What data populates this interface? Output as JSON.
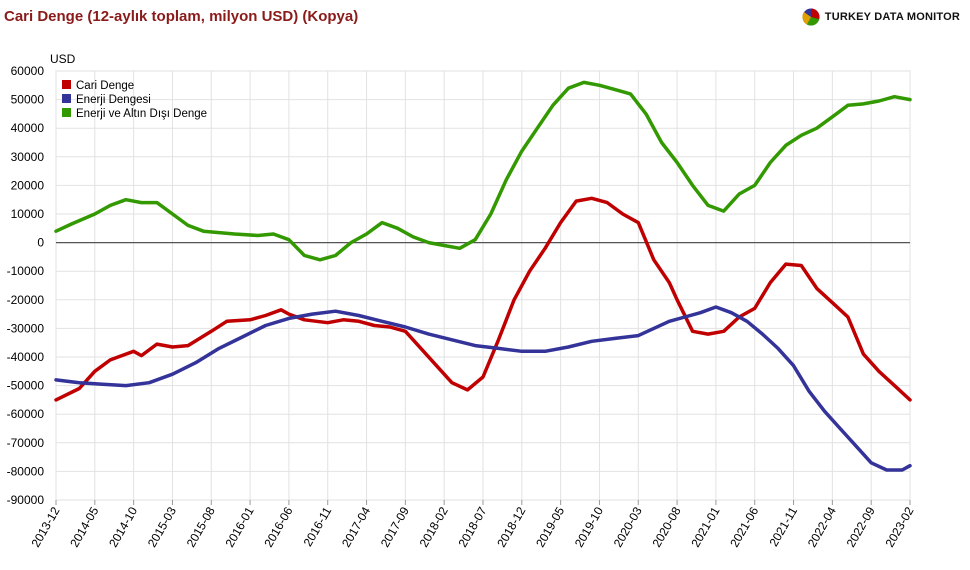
{
  "header": {
    "title": "Cari Denge (12-aylık toplam, milyon USD) (Kopya)",
    "brand": "TURKEY DATA MONITOR"
  },
  "colors": {
    "cari": "#c00000",
    "enerji": "#333399",
    "disi": "#339900",
    "zero_line": "#555555",
    "frame": "#cccccc"
  },
  "icons": {
    "brand": "pie-logo-icon"
  },
  "chart_data": {
    "type": "line",
    "ylabel": "USD",
    "ylim": [
      -90000,
      60000
    ],
    "yticks": [
      "60000",
      "50000",
      "40000",
      "30000",
      "20000",
      "10000",
      "0",
      "-10000",
      "-20000",
      "-30000",
      "-40000",
      "-50000",
      "-60000",
      "-70000",
      "-80000",
      "-90000"
    ],
    "x_start": "2013-12",
    "x_end": "2023-02",
    "xticks": [
      "2013-12",
      "2014-05",
      "2014-10",
      "2015-03",
      "2015-08",
      "2016-01",
      "2016-06",
      "2016-11",
      "2017-04",
      "2017-09",
      "2018-02",
      "2018-07",
      "2018-12",
      "2019-05",
      "2019-10",
      "2020-03",
      "2020-08",
      "2021-01",
      "2021-06",
      "2021-11",
      "2022-04",
      "2022-09",
      "2023-02"
    ],
    "legend_position": "top-left",
    "grid": true,
    "series": [
      {
        "name": "Cari Denge",
        "color": "#c00000",
        "points": [
          [
            "2013-12",
            -55000
          ],
          [
            "2014-03",
            -51000
          ],
          [
            "2014-05",
            -45000
          ],
          [
            "2014-07",
            -41000
          ],
          [
            "2014-10",
            -38000
          ],
          [
            "2014-11",
            -39500
          ],
          [
            "2015-01",
            -35500
          ],
          [
            "2015-03",
            -36500
          ],
          [
            "2015-05",
            -36000
          ],
          [
            "2015-08",
            -31000
          ],
          [
            "2015-10",
            -27500
          ],
          [
            "2016-01",
            -27000
          ],
          [
            "2016-03",
            -25500
          ],
          [
            "2016-05",
            -23500
          ],
          [
            "2016-06",
            -25000
          ],
          [
            "2016-08",
            -27000
          ],
          [
            "2016-11",
            -28000
          ],
          [
            "2017-01",
            -27000
          ],
          [
            "2017-03",
            -27500
          ],
          [
            "2017-05",
            -29000
          ],
          [
            "2017-07",
            -29500
          ],
          [
            "2017-09",
            -31000
          ],
          [
            "2017-11",
            -37000
          ],
          [
            "2018-01",
            -43000
          ],
          [
            "2018-03",
            -49000
          ],
          [
            "2018-05",
            -51500
          ],
          [
            "2018-07",
            -47000
          ],
          [
            "2018-09",
            -34000
          ],
          [
            "2018-11",
            -20000
          ],
          [
            "2019-01",
            -10000
          ],
          [
            "2019-03",
            -2000
          ],
          [
            "2019-05",
            7000
          ],
          [
            "2019-07",
            14500
          ],
          [
            "2019-09",
            15500
          ],
          [
            "2019-11",
            14000
          ],
          [
            "2020-01",
            10000
          ],
          [
            "2020-03",
            7000
          ],
          [
            "2020-05",
            -6000
          ],
          [
            "2020-07",
            -14000
          ],
          [
            "2020-08",
            -20000
          ],
          [
            "2020-10",
            -31000
          ],
          [
            "2020-12",
            -32000
          ],
          [
            "2021-02",
            -31000
          ],
          [
            "2021-04",
            -26000
          ],
          [
            "2021-06",
            -23000
          ],
          [
            "2021-08",
            -14000
          ],
          [
            "2021-10",
            -7500
          ],
          [
            "2021-12",
            -8000
          ],
          [
            "2022-02",
            -16000
          ],
          [
            "2022-04",
            -21000
          ],
          [
            "2022-06",
            -26000
          ],
          [
            "2022-08",
            -39000
          ],
          [
            "2022-10",
            -45000
          ],
          [
            "2022-12",
            -50000
          ],
          [
            "2023-02",
            -55000
          ]
        ]
      },
      {
        "name": "Enerji Dengesi",
        "color": "#333399",
        "points": [
          [
            "2013-12",
            -48000
          ],
          [
            "2014-03",
            -49000
          ],
          [
            "2014-06",
            -49500
          ],
          [
            "2014-09",
            -50000
          ],
          [
            "2014-12",
            -49000
          ],
          [
            "2015-03",
            -46000
          ],
          [
            "2015-06",
            -42000
          ],
          [
            "2015-09",
            -37000
          ],
          [
            "2015-12",
            -33000
          ],
          [
            "2016-03",
            -29000
          ],
          [
            "2016-06",
            -26500
          ],
          [
            "2016-09",
            -25000
          ],
          [
            "2016-12",
            -24000
          ],
          [
            "2017-03",
            -25500
          ],
          [
            "2017-06",
            -27500
          ],
          [
            "2017-09",
            -29500
          ],
          [
            "2017-12",
            -32000
          ],
          [
            "2018-03",
            -34000
          ],
          [
            "2018-06",
            -36000
          ],
          [
            "2018-09",
            -37000
          ],
          [
            "2018-12",
            -38000
          ],
          [
            "2019-03",
            -38000
          ],
          [
            "2019-06",
            -36500
          ],
          [
            "2019-09",
            -34500
          ],
          [
            "2019-12",
            -33500
          ],
          [
            "2020-03",
            -32500
          ],
          [
            "2020-05",
            -30000
          ],
          [
            "2020-07",
            -27500
          ],
          [
            "2020-09",
            -26000
          ],
          [
            "2020-11",
            -24500
          ],
          [
            "2021-01",
            -22500
          ],
          [
            "2021-03",
            -24500
          ],
          [
            "2021-05",
            -27500
          ],
          [
            "2021-07",
            -32000
          ],
          [
            "2021-09",
            -37000
          ],
          [
            "2021-11",
            -43000
          ],
          [
            "2022-01",
            -52000
          ],
          [
            "2022-03",
            -59000
          ],
          [
            "2022-05",
            -65000
          ],
          [
            "2022-07",
            -71000
          ],
          [
            "2022-09",
            -77000
          ],
          [
            "2022-11",
            -79500
          ],
          [
            "2023-01",
            -79500
          ],
          [
            "2023-02",
            -78000
          ]
        ]
      },
      {
        "name": "Enerji ve Altın Dışı Denge",
        "color": "#339900",
        "points": [
          [
            "2013-12",
            4000
          ],
          [
            "2014-02",
            6500
          ],
          [
            "2014-05",
            10000
          ],
          [
            "2014-07",
            13000
          ],
          [
            "2014-09",
            15000
          ],
          [
            "2014-11",
            14000
          ],
          [
            "2015-01",
            14000
          ],
          [
            "2015-03",
            10000
          ],
          [
            "2015-05",
            6000
          ],
          [
            "2015-07",
            4000
          ],
          [
            "2015-09",
            3500
          ],
          [
            "2015-11",
            3000
          ],
          [
            "2016-02",
            2500
          ],
          [
            "2016-04",
            3000
          ],
          [
            "2016-06",
            1000
          ],
          [
            "2016-08",
            -4500
          ],
          [
            "2016-10",
            -6000
          ],
          [
            "2016-12",
            -4500
          ],
          [
            "2017-02",
            0
          ],
          [
            "2017-04",
            3000
          ],
          [
            "2017-06",
            7000
          ],
          [
            "2017-08",
            5000
          ],
          [
            "2017-10",
            2000
          ],
          [
            "2017-12",
            0
          ],
          [
            "2018-02",
            -1000
          ],
          [
            "2018-04",
            -2000
          ],
          [
            "2018-06",
            1000
          ],
          [
            "2018-08",
            10000
          ],
          [
            "2018-10",
            22000
          ],
          [
            "2018-12",
            32000
          ],
          [
            "2019-02",
            40000
          ],
          [
            "2019-04",
            48000
          ],
          [
            "2019-06",
            54000
          ],
          [
            "2019-08",
            56000
          ],
          [
            "2019-10",
            55000
          ],
          [
            "2019-12",
            53500
          ],
          [
            "2020-02",
            52000
          ],
          [
            "2020-04",
            45000
          ],
          [
            "2020-06",
            35000
          ],
          [
            "2020-08",
            28000
          ],
          [
            "2020-10",
            20000
          ],
          [
            "2020-12",
            13000
          ],
          [
            "2021-02",
            11000
          ],
          [
            "2021-04",
            17000
          ],
          [
            "2021-06",
            20000
          ],
          [
            "2021-08",
            28000
          ],
          [
            "2021-10",
            34000
          ],
          [
            "2021-12",
            37500
          ],
          [
            "2022-02",
            40000
          ],
          [
            "2022-04",
            44000
          ],
          [
            "2022-06",
            48000
          ],
          [
            "2022-08",
            48500
          ],
          [
            "2022-10",
            49500
          ],
          [
            "2022-12",
            51000
          ],
          [
            "2023-02",
            50000
          ]
        ]
      }
    ]
  }
}
